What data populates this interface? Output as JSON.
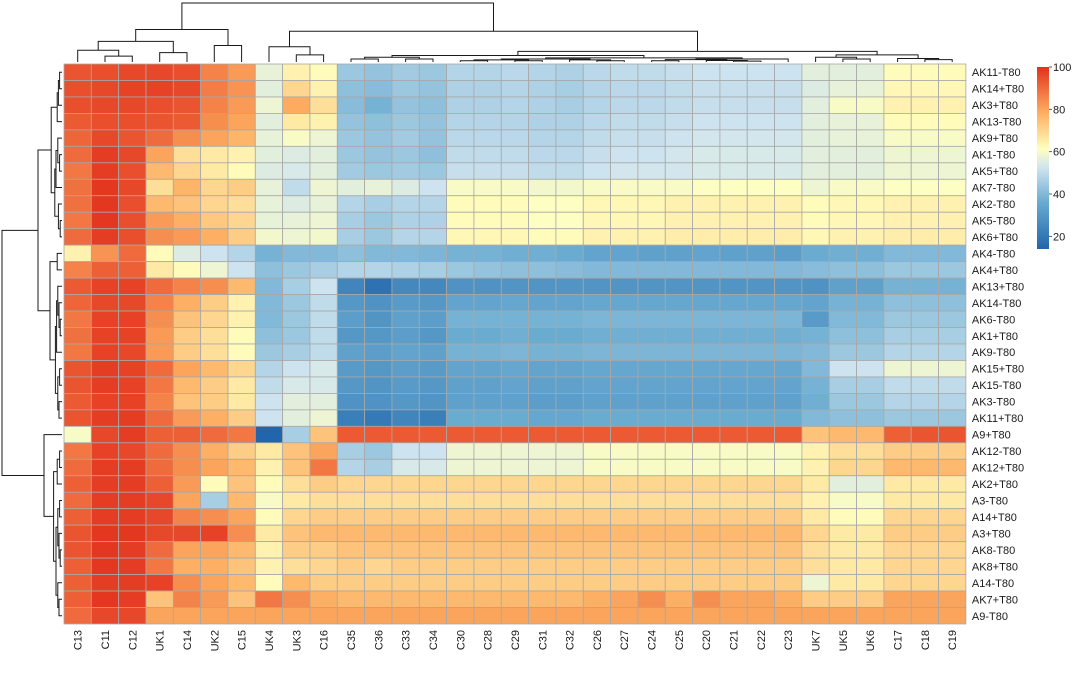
{
  "chart_data": {
    "type": "heatmap",
    "title": "",
    "columns": [
      "C13",
      "C11",
      "C12",
      "UK1",
      "C14",
      "UK2",
      "C15",
      "UK4",
      "UK3",
      "C16",
      "C35",
      "C36",
      "C33",
      "C34",
      "C30",
      "C28",
      "C29",
      "C31",
      "C32",
      "C26",
      "C27",
      "C24",
      "C25",
      "C20",
      "C21",
      "C22",
      "C23",
      "UK7",
      "UK5",
      "UK6",
      "C17",
      "C18",
      "C19"
    ],
    "rows": [
      "AK11-T80",
      "AK14+T80",
      "AK3+T80",
      "AK13-T80",
      "AK9+T80",
      "AK1-T80",
      "AK5+T80",
      "AK7-T80",
      "AK2-T80",
      "AK5-T80",
      "AK6+T80",
      "AK4-T80",
      "AK4+T80",
      "AK13+T80",
      "AK14-T80",
      "AK6-T80",
      "AK1+T80",
      "AK9-T80",
      "AK15+T80",
      "AK15-T80",
      "AK3-T80",
      "AK11+T80",
      "A9+T80",
      "AK12-T80",
      "AK12+T80",
      "AK2+T80",
      "A3-T80",
      "A14+T80",
      "A3+T80",
      "AK8-T80",
      "AK8+T80",
      "A14-T80",
      "AK7+T80",
      "A9-T80"
    ],
    "values": [
      [
        94,
        95,
        96,
        96,
        95,
        86,
        82,
        57,
        64,
        62,
        44,
        43,
        45,
        44,
        48,
        48,
        49,
        48,
        47,
        49,
        50,
        50,
        51,
        52,
        52,
        52,
        52,
        56,
        56,
        56,
        62,
        62,
        62
      ],
      [
        95,
        96,
        97,
        97,
        96,
        87,
        83,
        56,
        70,
        64,
        42,
        41,
        44,
        43,
        47,
        47,
        48,
        47,
        46,
        48,
        49,
        49,
        50,
        51,
        51,
        51,
        51,
        55,
        57,
        57,
        63,
        63,
        63
      ],
      [
        95,
        96,
        96,
        95,
        94,
        86,
        82,
        58,
        79,
        68,
        41,
        38,
        43,
        42,
        47,
        47,
        48,
        47,
        46,
        48,
        49,
        49,
        50,
        51,
        51,
        51,
        51,
        56,
        60,
        60,
        64,
        64,
        64
      ],
      [
        93,
        95,
        95,
        94,
        93,
        84,
        80,
        56,
        66,
        64,
        43,
        42,
        44,
        43,
        48,
        48,
        48,
        47,
        47,
        49,
        50,
        50,
        51,
        52,
        52,
        52,
        52,
        56,
        57,
        57,
        62,
        62,
        62
      ],
      [
        91,
        96,
        94,
        90,
        84,
        80,
        77,
        57,
        60,
        58,
        44,
        43,
        45,
        43,
        49,
        49,
        49,
        48,
        48,
        50,
        51,
        51,
        52,
        53,
        53,
        53,
        53,
        56,
        57,
        57,
        60,
        60,
        60
      ],
      [
        90,
        98,
        96,
        80,
        68,
        66,
        64,
        56,
        55,
        56,
        44,
        43,
        44,
        42,
        50,
        50,
        50,
        49,
        49,
        51,
        52,
        52,
        53,
        54,
        54,
        54,
        54,
        56,
        56,
        56,
        58,
        58,
        58
      ],
      [
        88,
        98,
        95,
        76,
        70,
        66,
        62,
        55,
        54,
        56,
        45,
        44,
        45,
        44,
        51,
        51,
        51,
        50,
        50,
        52,
        53,
        53,
        53,
        54,
        54,
        54,
        54,
        56,
        56,
        56,
        58,
        58,
        58
      ],
      [
        89,
        99,
        96,
        68,
        77,
        70,
        72,
        57,
        50,
        58,
        56,
        57,
        55,
        52,
        60,
        60,
        60,
        59,
        59,
        60,
        60,
        60,
        60,
        61,
        61,
        61,
        61,
        58,
        60,
        60,
        61,
        61,
        61
      ],
      [
        89,
        99,
        95,
        76,
        74,
        70,
        68,
        57,
        55,
        57,
        48,
        46,
        48,
        48,
        62,
        62,
        62,
        61,
        61,
        63,
        63,
        63,
        64,
        64,
        64,
        64,
        64,
        62,
        63,
        63,
        64,
        64,
        64
      ],
      [
        88,
        99,
        95,
        82,
        78,
        73,
        70,
        57,
        57,
        58,
        46,
        44,
        47,
        47,
        62,
        62,
        62,
        61,
        61,
        63,
        63,
        63,
        64,
        64,
        64,
        64,
        64,
        62,
        63,
        63,
        64,
        64,
        64
      ],
      [
        90,
        98,
        95,
        84,
        82,
        78,
        72,
        59,
        58,
        59,
        46,
        44,
        48,
        48,
        63,
        63,
        63,
        62,
        62,
        64,
        64,
        64,
        65,
        65,
        65,
        65,
        65,
        63,
        64,
        64,
        65,
        65,
        65
      ],
      [
        64,
        83,
        90,
        62,
        55,
        52,
        48,
        38,
        40,
        40,
        42,
        40,
        40,
        39,
        38,
        38,
        37,
        37,
        36,
        34,
        34,
        33,
        33,
        34,
        33,
        33,
        32,
        36,
        37,
        37,
        40,
        40,
        40
      ],
      [
        86,
        92,
        92,
        66,
        62,
        58,
        52,
        42,
        44,
        46,
        48,
        48,
        47,
        46,
        44,
        43,
        42,
        42,
        41,
        40,
        40,
        40,
        40,
        40,
        40,
        40,
        40,
        41,
        42,
        42,
        44,
        44,
        44
      ],
      [
        93,
        97,
        97,
        90,
        86,
        84,
        76,
        40,
        46,
        52,
        24,
        18,
        25,
        25,
        28,
        28,
        29,
        29,
        29,
        29,
        29,
        29,
        29,
        29,
        29,
        29,
        29,
        28,
        33,
        33,
        38,
        38,
        38
      ],
      [
        91,
        96,
        96,
        86,
        78,
        72,
        64,
        40,
        44,
        50,
        30,
        28,
        31,
        30,
        34,
        34,
        35,
        34,
        34,
        35,
        35,
        35,
        35,
        35,
        35,
        35,
        35,
        34,
        38,
        38,
        42,
        42,
        42
      ],
      [
        88,
        97,
        97,
        84,
        74,
        70,
        64,
        40,
        44,
        50,
        32,
        29,
        33,
        32,
        38,
        38,
        38,
        38,
        38,
        39,
        39,
        39,
        39,
        39,
        39,
        39,
        39,
        31,
        40,
        40,
        44,
        44,
        44
      ],
      [
        89,
        97,
        97,
        82,
        72,
        68,
        62,
        42,
        44,
        50,
        30,
        30,
        32,
        30,
        36,
        36,
        37,
        36,
        36,
        37,
        37,
        37,
        37,
        37,
        37,
        37,
        37,
        38,
        42,
        42,
        46,
        46,
        46
      ],
      [
        88,
        97,
        96,
        82,
        72,
        68,
        62,
        44,
        46,
        50,
        33,
        32,
        34,
        33,
        38,
        38,
        39,
        38,
        38,
        39,
        39,
        39,
        39,
        39,
        39,
        39,
        39,
        40,
        44,
        44,
        48,
        48,
        48
      ],
      [
        94,
        98,
        97,
        90,
        80,
        76,
        70,
        48,
        52,
        54,
        31,
        30,
        32,
        31,
        34,
        34,
        35,
        34,
        34,
        35,
        35,
        35,
        35,
        35,
        35,
        35,
        35,
        40,
        52,
        52,
        58,
        58,
        58
      ],
      [
        94,
        98,
        97,
        88,
        76,
        72,
        66,
        50,
        54,
        54,
        30,
        29,
        31,
        30,
        33,
        33,
        34,
        33,
        33,
        34,
        34,
        34,
        34,
        34,
        34,
        34,
        34,
        38,
        46,
        46,
        50,
        50,
        50
      ],
      [
        93,
        97,
        97,
        86,
        74,
        72,
        66,
        52,
        56,
        56,
        28,
        28,
        30,
        29,
        33,
        33,
        33,
        32,
        32,
        33,
        33,
        33,
        33,
        33,
        33,
        33,
        33,
        37,
        44,
        44,
        48,
        48,
        48
      ],
      [
        94,
        98,
        98,
        90,
        82,
        78,
        72,
        52,
        56,
        58,
        22,
        20,
        24,
        22,
        36,
        36,
        36,
        35,
        35,
        36,
        36,
        36,
        36,
        36,
        36,
        36,
        36,
        40,
        42,
        42,
        44,
        44,
        44
      ],
      [
        60,
        96,
        98,
        92,
        92,
        90,
        88,
        14,
        46,
        74,
        93,
        93,
        93,
        93,
        93,
        93,
        93,
        93,
        93,
        93,
        93,
        93,
        93,
        93,
        93,
        93,
        93,
        74,
        76,
        76,
        92,
        94,
        94
      ],
      [
        88,
        97,
        96,
        90,
        84,
        78,
        72,
        66,
        74,
        80,
        46,
        44,
        52,
        52,
        58,
        58,
        58,
        58,
        58,
        60,
        60,
        60,
        60,
        60,
        60,
        60,
        60,
        64,
        68,
        68,
        72,
        72,
        72
      ],
      [
        90,
        98,
        98,
        90,
        84,
        80,
        76,
        64,
        74,
        88,
        48,
        46,
        54,
        54,
        58,
        58,
        58,
        58,
        58,
        60,
        60,
        60,
        60,
        60,
        60,
        60,
        60,
        64,
        70,
        70,
        76,
        76,
        76
      ],
      [
        92,
        98,
        98,
        92,
        82,
        62,
        74,
        62,
        68,
        72,
        70,
        70,
        70,
        70,
        70,
        70,
        70,
        70,
        70,
        70,
        70,
        70,
        70,
        70,
        70,
        70,
        70,
        66,
        56,
        56,
        66,
        66,
        66
      ],
      [
        90,
        98,
        98,
        96,
        80,
        46,
        76,
        60,
        66,
        68,
        68,
        68,
        68,
        68,
        68,
        68,
        68,
        68,
        68,
        68,
        68,
        68,
        68,
        68,
        68,
        68,
        68,
        64,
        60,
        60,
        66,
        66,
        66
      ],
      [
        92,
        98,
        98,
        96,
        86,
        84,
        80,
        62,
        70,
        72,
        72,
        72,
        72,
        72,
        72,
        72,
        72,
        72,
        72,
        72,
        72,
        72,
        72,
        72,
        72,
        72,
        72,
        66,
        62,
        62,
        70,
        70,
        70
      ],
      [
        94,
        99,
        99,
        96,
        96,
        97,
        84,
        66,
        74,
        76,
        76,
        76,
        76,
        76,
        76,
        76,
        76,
        76,
        76,
        76,
        76,
        76,
        76,
        76,
        76,
        76,
        76,
        70,
        66,
        66,
        72,
        72,
        72
      ],
      [
        94,
        99,
        98,
        90,
        80,
        80,
        76,
        64,
        72,
        72,
        74,
        74,
        74,
        74,
        74,
        74,
        74,
        74,
        74,
        74,
        74,
        74,
        74,
        74,
        74,
        74,
        74,
        68,
        66,
        66,
        70,
        70,
        70
      ],
      [
        92,
        99,
        98,
        88,
        78,
        78,
        74,
        64,
        68,
        70,
        72,
        70,
        72,
        72,
        72,
        72,
        72,
        72,
        72,
        72,
        72,
        72,
        72,
        72,
        72,
        72,
        72,
        68,
        66,
        66,
        70,
        70,
        70
      ],
      [
        92,
        98,
        98,
        97,
        84,
        80,
        76,
        62,
        76,
        72,
        72,
        72,
        72,
        72,
        72,
        72,
        72,
        72,
        72,
        72,
        72,
        72,
        72,
        72,
        72,
        72,
        72,
        58,
        66,
        66,
        70,
        70,
        70
      ],
      [
        92,
        99,
        98,
        74,
        86,
        82,
        74,
        88,
        84,
        78,
        76,
        76,
        76,
        76,
        76,
        76,
        76,
        76,
        76,
        78,
        80,
        84,
        78,
        84,
        80,
        80,
        78,
        72,
        72,
        72,
        80,
        80,
        80
      ],
      [
        90,
        96,
        96,
        80,
        80,
        80,
        80,
        80,
        80,
        80,
        80,
        80,
        80,
        80,
        80,
        80,
        80,
        80,
        80,
        80,
        80,
        80,
        80,
        80,
        80,
        80,
        80,
        80,
        80,
        80,
        80,
        80,
        80
      ]
    ],
    "color_scale": {
      "min": 14,
      "max": 100,
      "low_color": "#2166ac",
      "mid_color": "#ffffbf",
      "high_color": "#e3311d"
    },
    "legend": {
      "ticks": [
        20,
        40,
        60,
        80,
        100
      ],
      "position": "top-right"
    },
    "row_dendrogram": true,
    "column_dendrogram": true
  }
}
